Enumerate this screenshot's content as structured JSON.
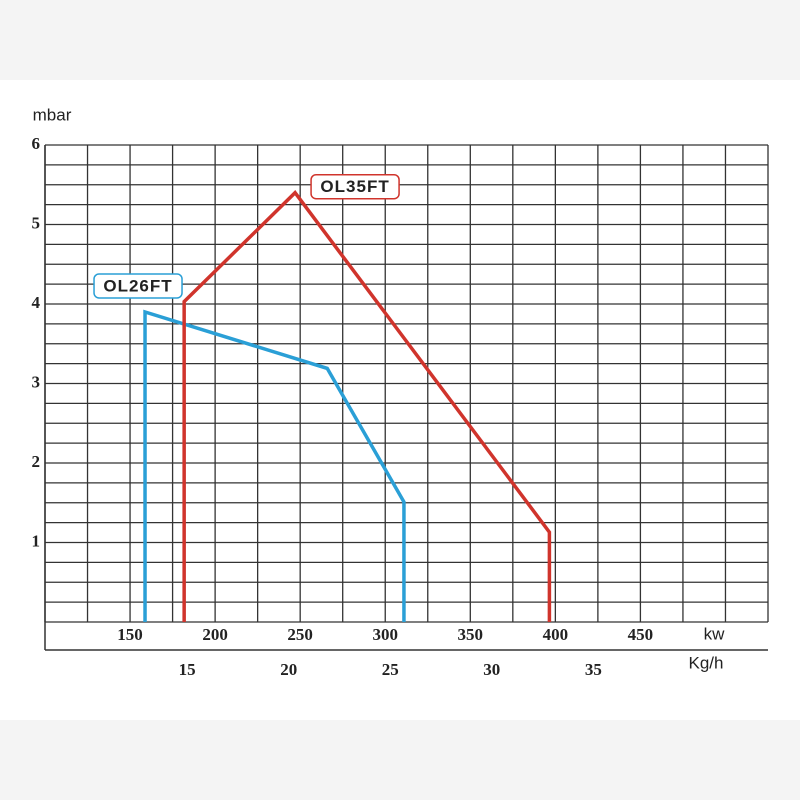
{
  "chart_data": {
    "type": "line",
    "y_label": "mbar",
    "x_label": "kw",
    "x2_label": "Kg/h",
    "xlim": [
      100,
      525
    ],
    "xticks": [
      150,
      200,
      250,
      300,
      350,
      400,
      450
    ],
    "x2lim": [
      8,
      43.6
    ],
    "x2ticks": [
      15,
      20,
      25,
      30,
      35
    ],
    "ylim": [
      0,
      6
    ],
    "yticks": [
      1,
      2,
      3,
      4,
      5,
      6
    ],
    "xgrid": [
      100,
      125,
      150,
      175,
      200,
      225,
      250,
      275,
      300,
      325,
      350,
      375,
      400,
      425,
      450,
      475,
      500,
      525
    ],
    "ygrid": [
      0,
      0.25,
      0.5,
      0.75,
      1,
      1.25,
      1.5,
      1.75,
      2,
      2.25,
      2.5,
      2.75,
      3,
      3.25,
      3.5,
      3.75,
      4,
      4.25,
      4.5,
      4.75,
      5,
      5.25,
      5.5,
      5.75,
      6
    ],
    "grid": true,
    "series": [
      {
        "name": "OL26FT",
        "color": "#2a9fd6",
        "x": [
          158.8,
          158.8,
          265.9,
          311,
          311
        ],
        "values": [
          0,
          3.9,
          3.19,
          1.51,
          0
        ]
      },
      {
        "name": "OL35FT",
        "color": "#d0342c",
        "x": [
          181.8,
          181.8,
          247,
          396.5,
          396.5
        ],
        "values": [
          0,
          4.03,
          5.4,
          1.13,
          0
        ]
      }
    ]
  }
}
